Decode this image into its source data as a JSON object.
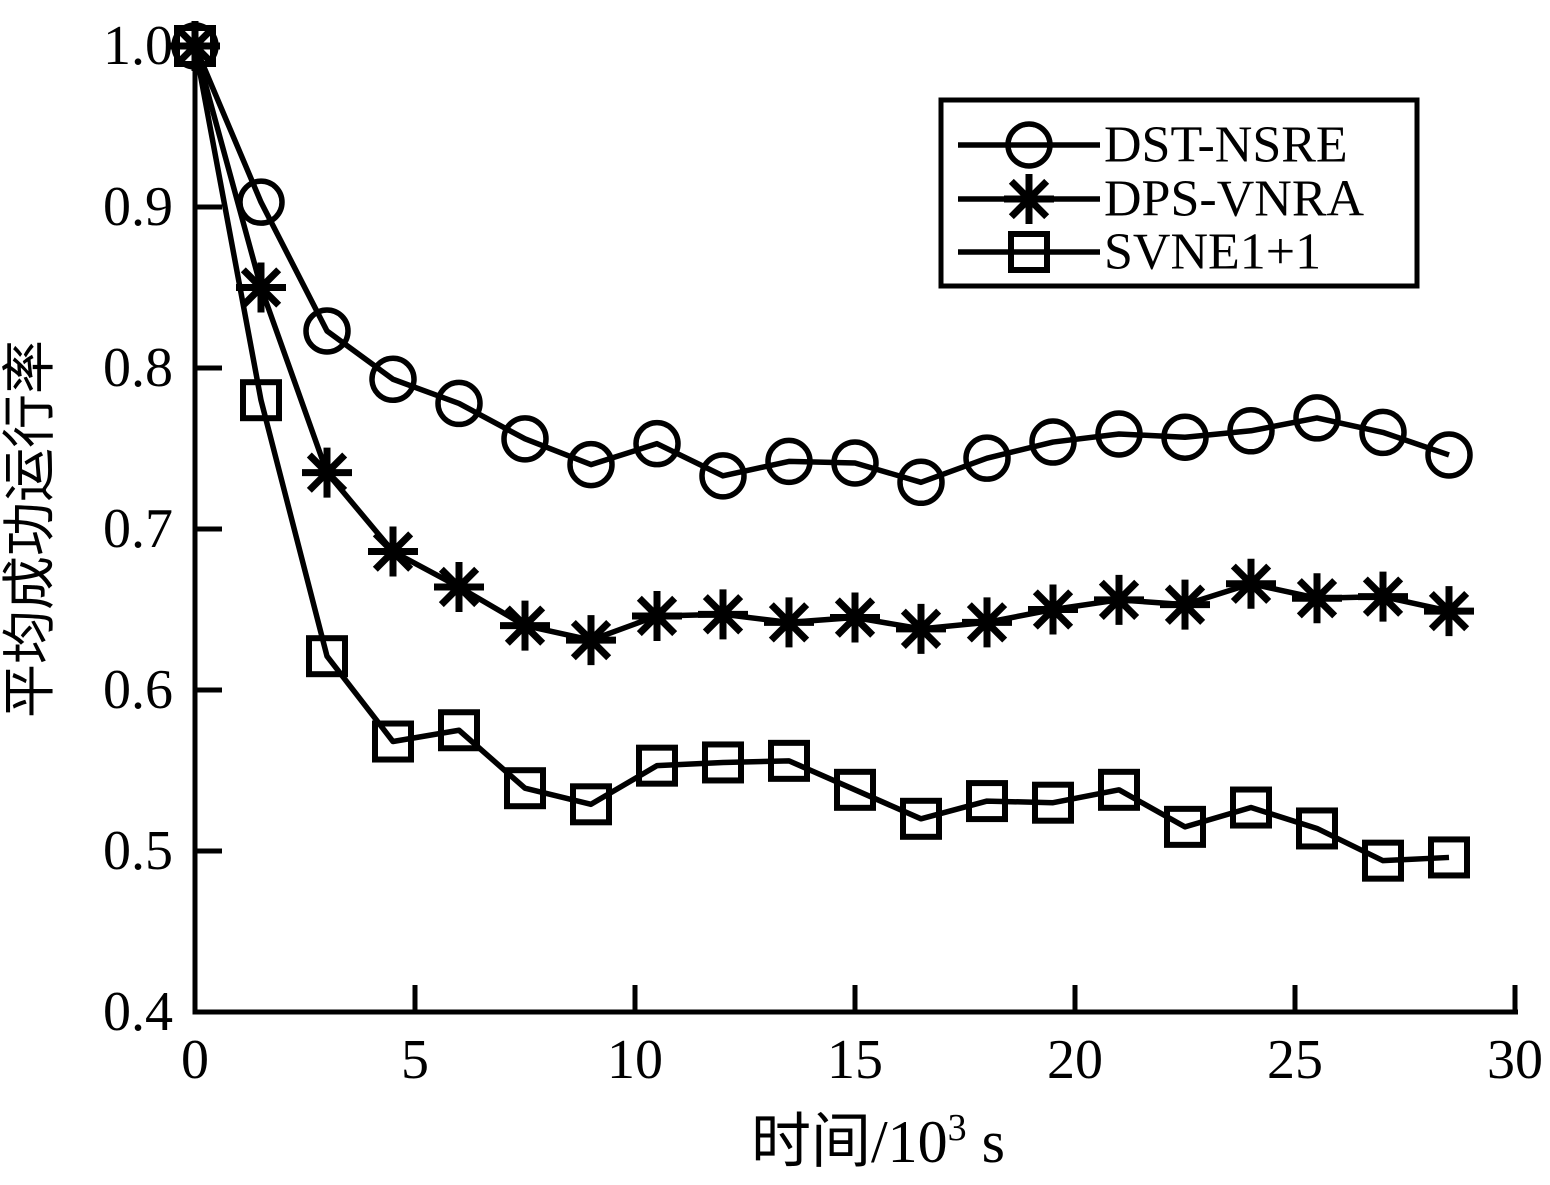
{
  "figure": {
    "background": "#ffffff",
    "foreground": "#000000"
  },
  "chart_data": {
    "type": "line",
    "title": "",
    "xlabel": {
      "text": "时间/10³ s",
      "base": "时间/10",
      "sup": "3",
      "tail": " s"
    },
    "ylabel": "平均成功运行率",
    "xlim": [
      0,
      30
    ],
    "ylim": [
      0.4,
      1.0
    ],
    "grid": false,
    "legend_position": "top-right",
    "x_ticks": {
      "values": [
        0,
        5,
        10,
        15,
        20,
        25,
        30
      ],
      "labels": [
        "0",
        "5",
        "10",
        "15",
        "20",
        "25",
        "30"
      ]
    },
    "y_ticks": {
      "values": [
        1.0,
        0.9,
        0.8,
        0.7,
        0.6,
        0.5,
        0.4
      ],
      "labels": [
        "1.0",
        "0.9",
        "0.8",
        "0.7",
        "0.6",
        "0.5",
        "0.4"
      ]
    },
    "x": [
      0,
      1.5,
      3,
      4.5,
      6,
      7.5,
      9,
      10.5,
      12,
      13.5,
      15,
      16.5,
      18,
      19.5,
      21,
      22.5,
      24,
      25.5,
      27,
      28.5
    ],
    "series": [
      {
        "name": "DST-NSRE",
        "marker": "circle",
        "color": "#000000",
        "values": [
          1.0,
          0.903,
          0.823,
          0.793,
          0.778,
          0.756,
          0.74,
          0.753,
          0.733,
          0.742,
          0.741,
          0.729,
          0.744,
          0.754,
          0.759,
          0.757,
          0.761,
          0.769,
          0.76,
          0.746
        ]
      },
      {
        "name": "DPS-VNRA",
        "marker": "asterisk",
        "color": "#000000",
        "values": [
          1.0,
          0.85,
          0.735,
          0.686,
          0.664,
          0.64,
          0.631,
          0.646,
          0.647,
          0.642,
          0.645,
          0.638,
          0.642,
          0.65,
          0.656,
          0.653,
          0.666,
          0.657,
          0.658,
          0.649
        ]
      },
      {
        "name": "SVNE1+1",
        "marker": "square",
        "color": "#000000",
        "values": [
          1.0,
          0.78,
          0.621,
          0.568,
          0.575,
          0.539,
          0.529,
          0.553,
          0.555,
          0.556,
          0.538,
          0.52,
          0.531,
          0.53,
          0.538,
          0.515,
          0.527,
          0.514,
          0.494,
          0.496
        ]
      }
    ]
  }
}
